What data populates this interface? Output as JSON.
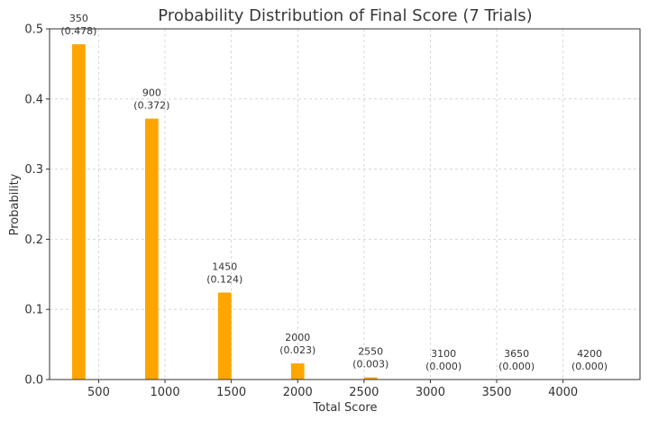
{
  "chart_data": {
    "type": "bar",
    "title": "Probability Distribution of Final Score (7 Trials)",
    "xlabel": "Total Score",
    "ylabel": "Probability",
    "x": [
      350,
      900,
      1450,
      2000,
      2550,
      3100,
      3650,
      4200
    ],
    "values": [
      0.478,
      0.372,
      0.124,
      0.023,
      0.003,
      0.0,
      0.0,
      0.0
    ],
    "data_labels": [
      [
        "350",
        "(0.478)"
      ],
      [
        "900",
        "(0.372)"
      ],
      [
        "1450",
        "(0.124)"
      ],
      [
        "2000",
        "(0.023)"
      ],
      [
        "2550",
        "(0.003)"
      ],
      [
        "3100",
        "(0.000)"
      ],
      [
        "3650",
        "(0.000)"
      ],
      [
        "4200",
        "(0.000)"
      ]
    ],
    "xlim": [
      130,
      4580
    ],
    "ylim": [
      0,
      0.5
    ],
    "bar_width": 100,
    "x_ticks": [
      500,
      1000,
      1500,
      2000,
      2500,
      3000,
      3500,
      4000
    ],
    "x_tick_labels": [
      "500",
      "1000",
      "1500",
      "2000",
      "2500",
      "3000",
      "3500",
      "4000"
    ],
    "y_ticks": [
      0,
      0.1,
      0.2,
      0.3,
      0.4,
      0.5
    ],
    "y_tick_labels": [
      "0.0",
      "0.1",
      "0.2",
      "0.3",
      "0.4",
      "0.5"
    ],
    "grid": true,
    "legend": "none",
    "bar_color": "#FFA500"
  }
}
